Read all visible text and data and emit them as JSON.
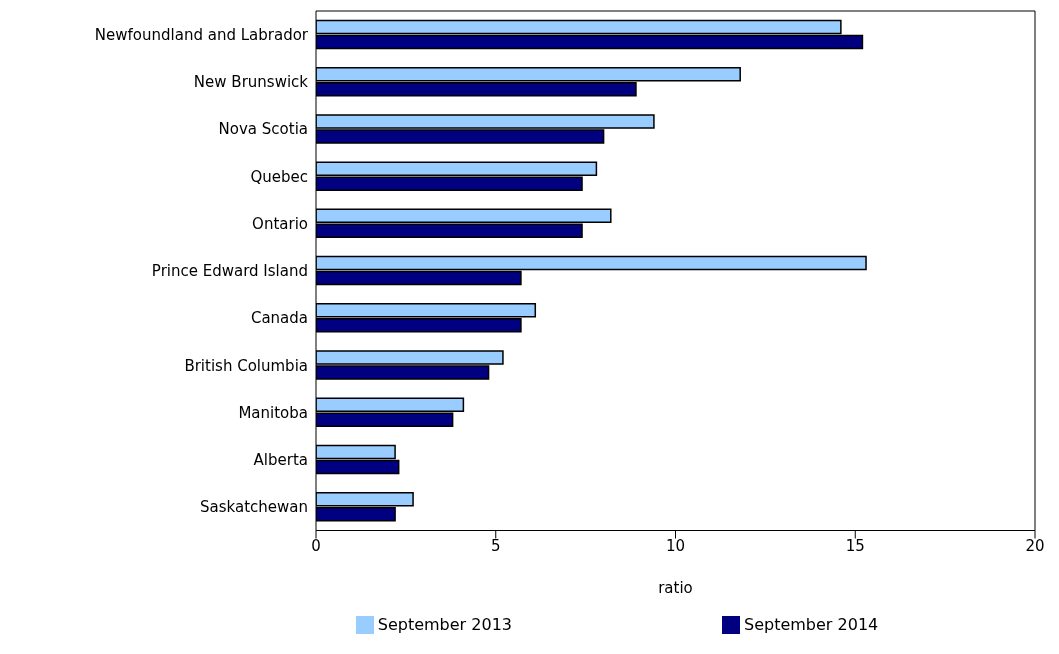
{
  "chart_data": {
    "type": "bar",
    "orientation": "horizontal",
    "xlabel": "ratio",
    "categories": [
      "Newfoundland and Labrador",
      "New Brunswick",
      "Nova Scotia",
      "Quebec",
      "Ontario",
      "Prince Edward Island",
      "Canada",
      "British Columbia",
      "Manitoba",
      "Alberta",
      "Saskatchewan"
    ],
    "series": [
      {
        "name": "September 2013",
        "color": "#99ccff",
        "values": [
          14.6,
          11.8,
          9.4,
          7.8,
          8.2,
          15.3,
          6.1,
          5.2,
          4.1,
          2.2,
          2.7
        ]
      },
      {
        "name": "September 2014",
        "color": "#000080",
        "values": [
          15.2,
          8.9,
          8.0,
          7.4,
          7.4,
          5.7,
          5.7,
          4.8,
          3.8,
          2.3,
          2.2
        ]
      }
    ],
    "xlim": [
      0,
      20
    ],
    "xticks": [
      0,
      5,
      10,
      15,
      20
    ],
    "legend": "bottom"
  }
}
